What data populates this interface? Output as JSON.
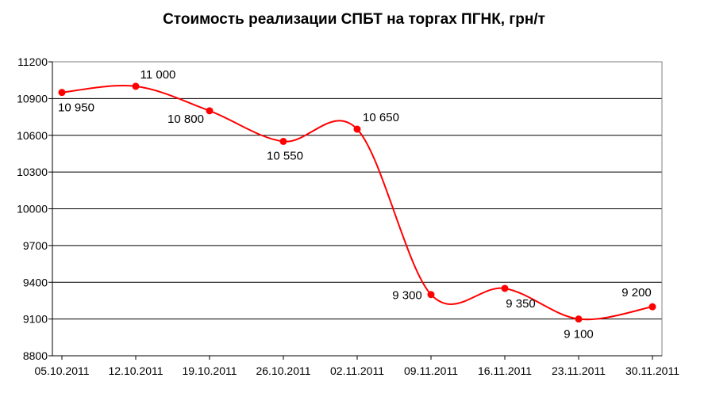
{
  "chart_data": {
    "type": "line",
    "title": "Стоимость реализации СПБТ на торгах ПГНК, грн/т",
    "xlabel": "",
    "ylabel": "",
    "categories": [
      "05.10.2011",
      "12.10.2011",
      "19.10.2011",
      "26.10.2011",
      "02.11.2011",
      "09.11.2011",
      "16.11.2011",
      "23.11.2011",
      "30.11.2011"
    ],
    "series": [
      {
        "values": [
          10950,
          11000,
          10800,
          10550,
          10650,
          9300,
          9350,
          9100,
          9200
        ],
        "labels": [
          "10 950",
          "11 000",
          "10 800",
          "10 550",
          "10 650",
          "9 300",
          "9 350",
          "9 100",
          "9 200"
        ],
        "color": "#ff0000"
      }
    ],
    "ylim": [
      8800,
      11200
    ],
    "yticks": [
      8800,
      9100,
      9400,
      9700,
      10000,
      10300,
      10600,
      10900,
      11200
    ],
    "grid": true,
    "smooth": true
  }
}
